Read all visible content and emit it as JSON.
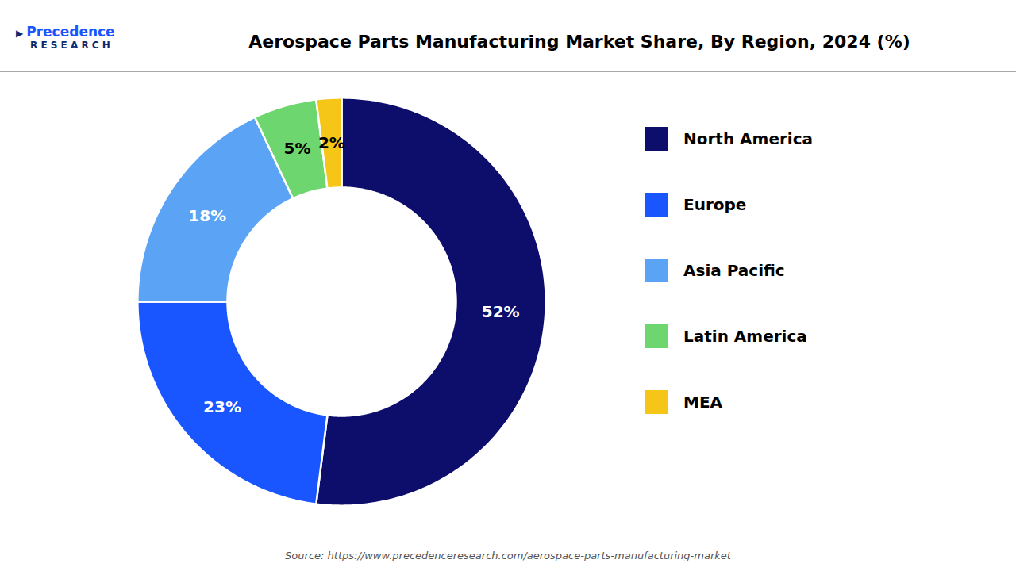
{
  "chart_data": {
    "type": "pie",
    "title": "Aerospace Parts Manufacturing Market Share, By Region, 2024 (%)",
    "categories": [
      "North America",
      "Europe",
      "Asia Pacific",
      "Latin America",
      "MEA"
    ],
    "values": [
      52,
      23,
      18,
      5,
      2
    ],
    "value_labels": [
      "52%",
      "23%",
      "18%",
      "5%",
      "2%"
    ],
    "data_labels": true,
    "colors": [
      "#0d0d6b",
      "#1a56ff",
      "#5ba3f5",
      "#6ed66e",
      "#f5c518"
    ],
    "legend": "right",
    "annotations": [
      "▶",
      "Precedence",
      "R E S E A R C H",
      "Source: https://www.precedenceresearch.com/aerospace-parts-manufacturing-market"
    ]
  }
}
